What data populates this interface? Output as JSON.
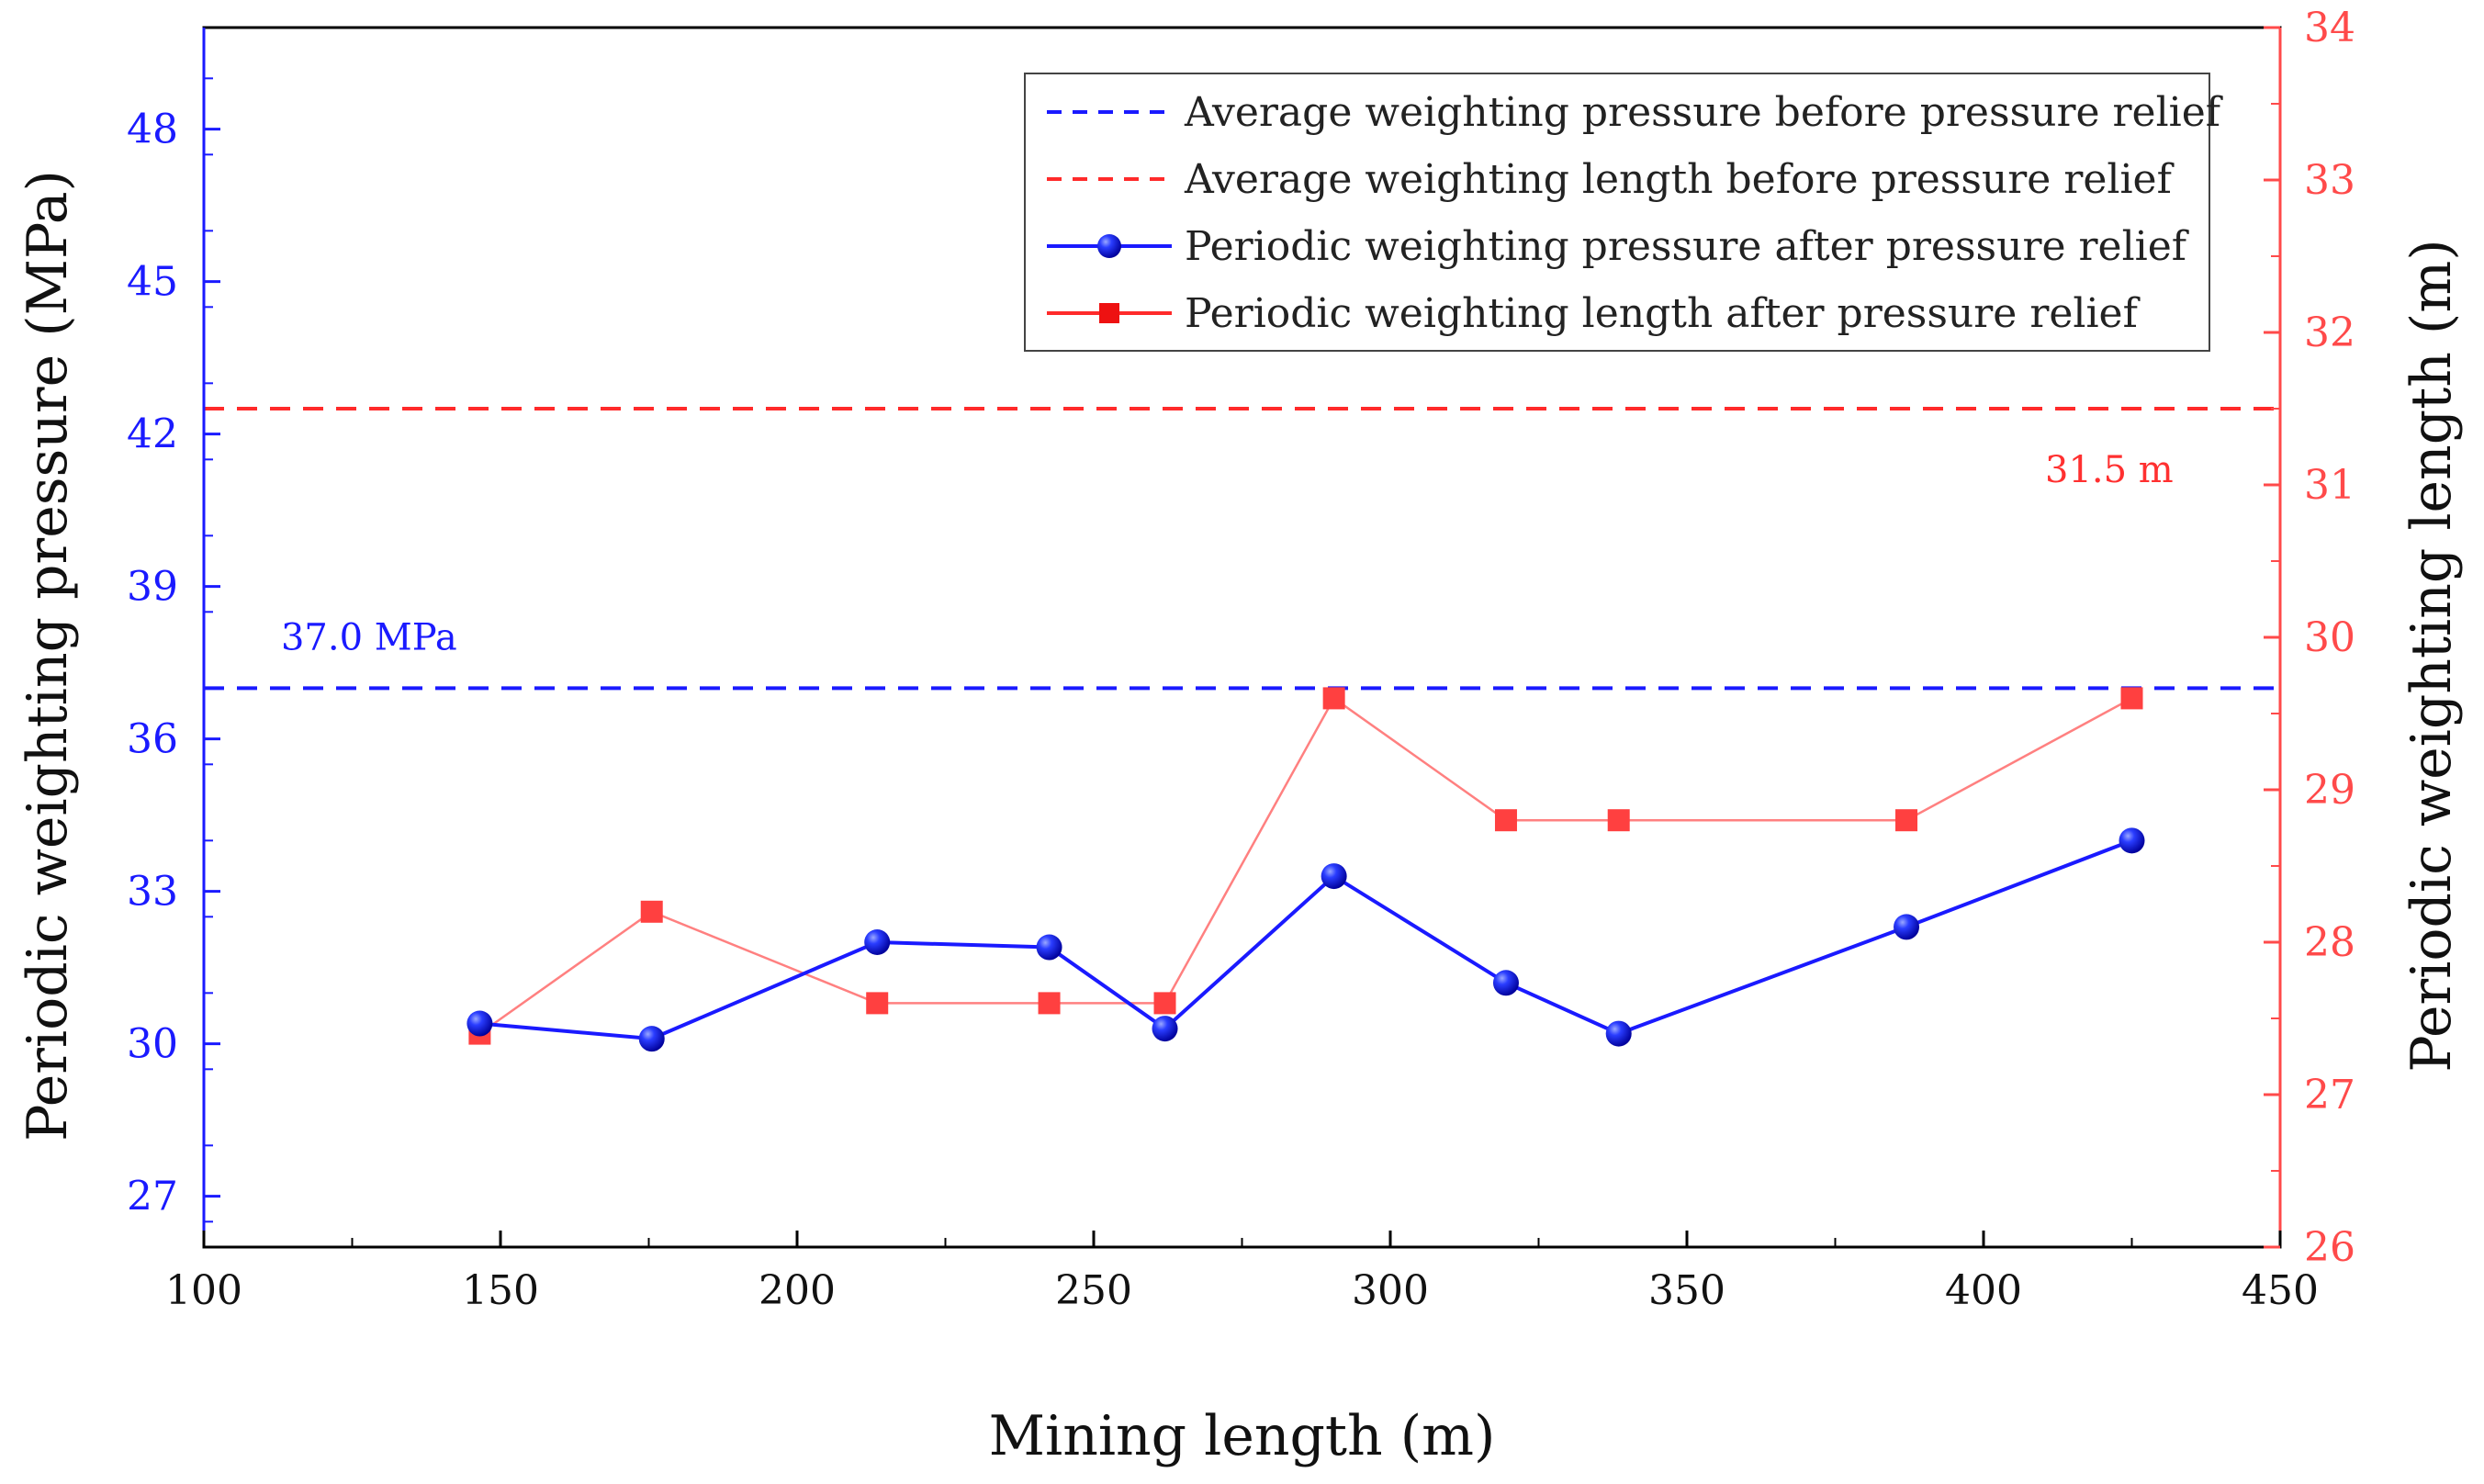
{
  "chart_data": {
    "type": "line",
    "xlabel": "Mining length (m)",
    "ylabel_left": "Periodic weighting pressure  (MPa)",
    "ylabel_right": "Periodic weighting length (m)",
    "xlim": [
      100,
      450
    ],
    "ylim_left": [
      26,
      50
    ],
    "ylim_right": [
      26,
      34
    ],
    "x_ticks": [
      100,
      150,
      200,
      250,
      300,
      350,
      400,
      450
    ],
    "y_left_ticks": [
      27,
      30,
      33,
      36,
      39,
      42,
      45,
      48
    ],
    "y_right_ticks": [
      26,
      27,
      28,
      29,
      30,
      31,
      32,
      33,
      34
    ],
    "colors": {
      "blue": "#1a1aff",
      "red": "#ff4040",
      "red_line": "#ff8080"
    },
    "legend": [
      {
        "label": "Average weighting pressure before pressure relief",
        "style": "dashed",
        "color": "#1a1aff"
      },
      {
        "label": "Average weighting length before pressure relief",
        "style": "dashed",
        "color": "#ff2a2a"
      },
      {
        "label": "Periodic weighting pressure after pressure relief",
        "style": "line-circle",
        "color": "#1a1aff"
      },
      {
        "label": "Periodic weighting length after pressure relief",
        "style": "line-square",
        "color": "#ff2a2a"
      }
    ],
    "reference_lines": [
      {
        "name": "avg-pressure",
        "axis": "left",
        "value": 37.0,
        "label": "37.0 MPa",
        "color": "#1a1aff"
      },
      {
        "name": "avg-length",
        "axis": "right",
        "value": 31.5,
        "label": "31.5 m",
        "color": "#ff2a2a"
      }
    ],
    "series": [
      {
        "name": "Periodic weighting pressure after pressure relief",
        "axis": "left",
        "marker": "circle",
        "color": "#1a1aff",
        "x": [
          146.5,
          175.5,
          213.5,
          242.5,
          262,
          290.5,
          319.5,
          338.5,
          387,
          425
        ],
        "y": [
          30.4,
          30.1,
          32.0,
          31.9,
          30.3,
          33.3,
          31.2,
          30.2,
          32.3,
          34.0
        ]
      },
      {
        "name": "Periodic weighting length after pressure relief",
        "axis": "right",
        "marker": "square",
        "color": "#ff4040",
        "x": [
          146.5,
          175.5,
          213.5,
          242.5,
          262,
          290.5,
          319.5,
          338.5,
          387,
          425
        ],
        "y": [
          27.4,
          28.2,
          27.6,
          27.6,
          27.6,
          29.6,
          28.8,
          28.8,
          28.8,
          29.6
        ]
      }
    ]
  }
}
